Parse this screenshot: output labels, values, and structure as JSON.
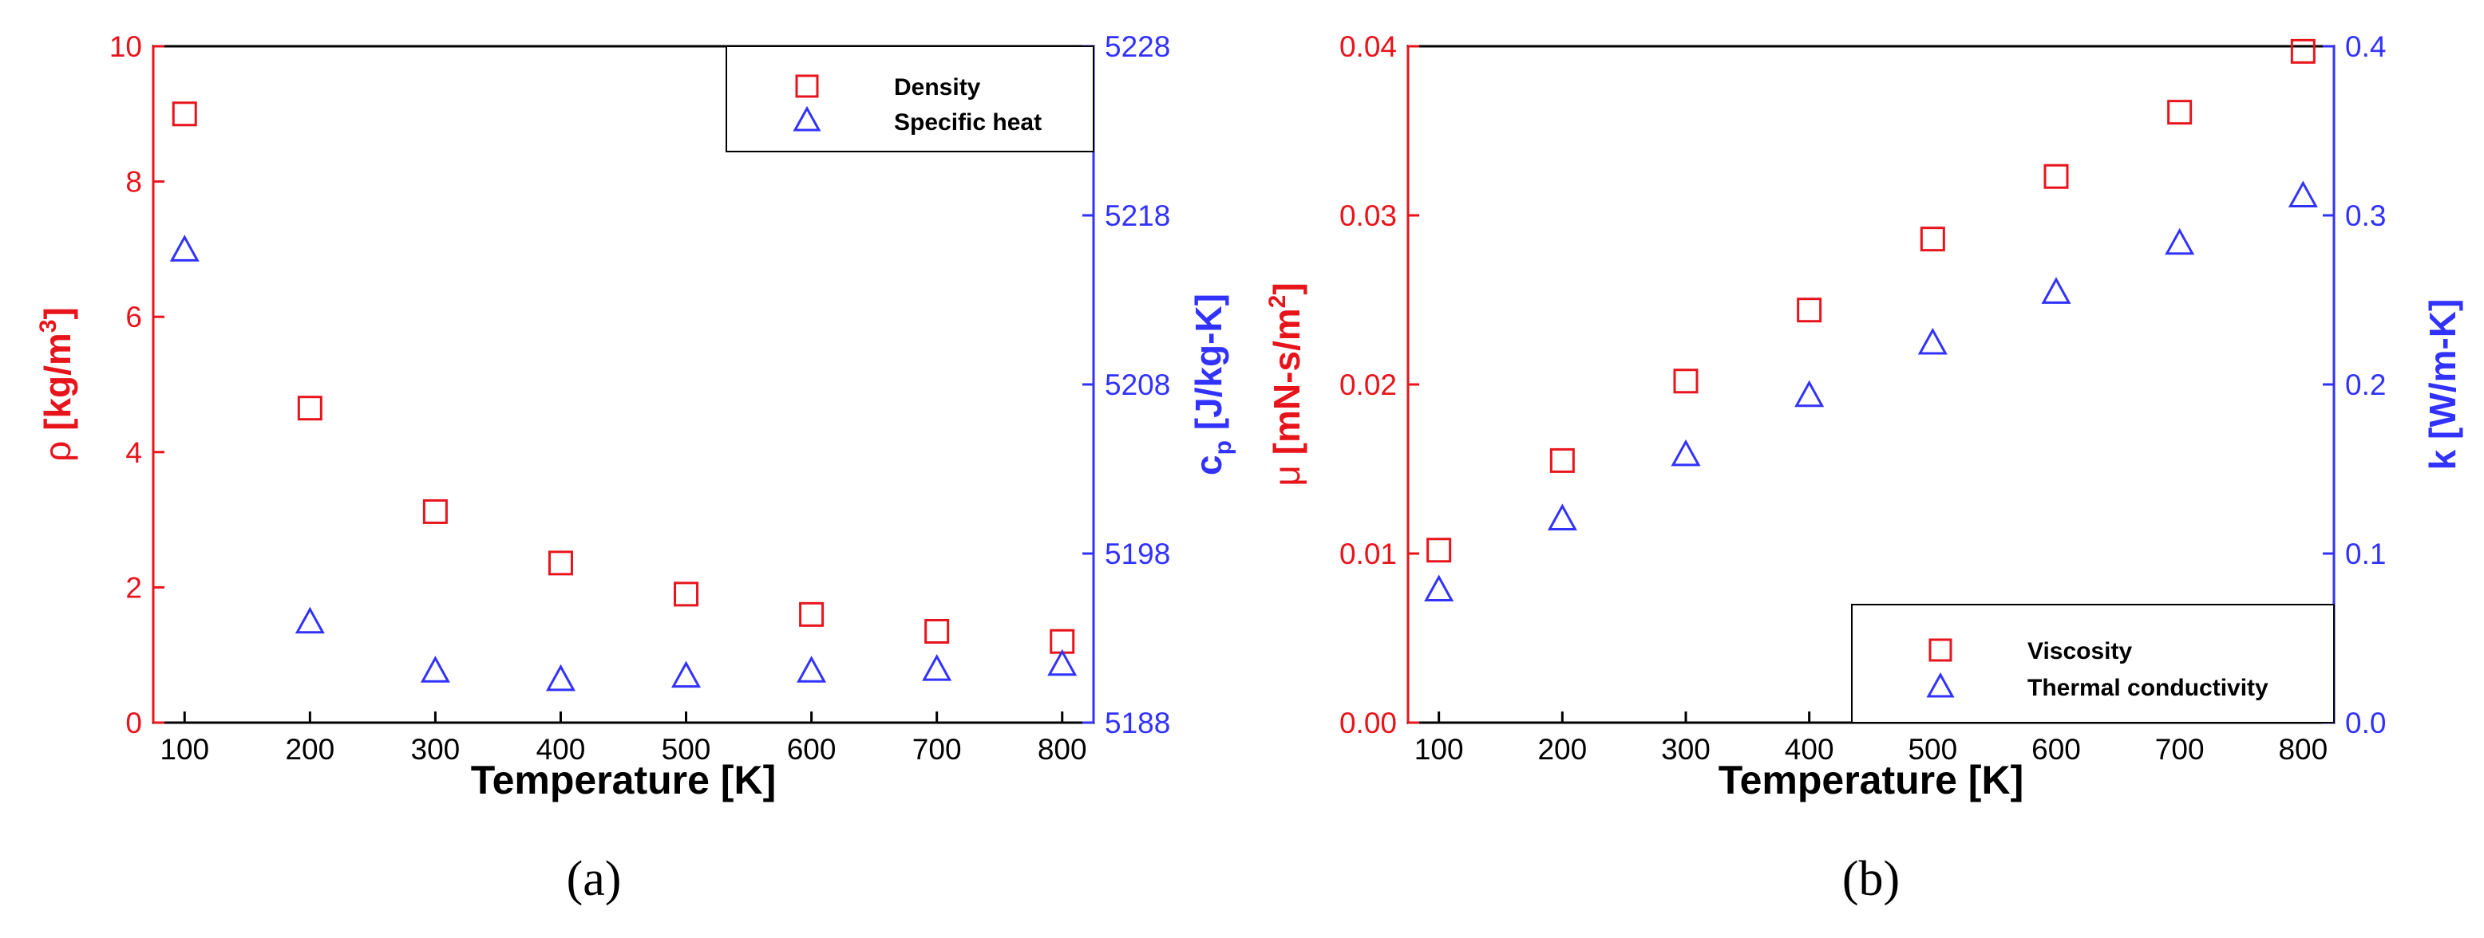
{
  "colors": {
    "red": "#e8141c",
    "blue": "#3232ff",
    "axis": "#000000"
  },
  "chart_data": [
    {
      "type": "scatter",
      "panel_label": "(a)",
      "xlabel": "Temperature [K]",
      "x_ticks": [
        "100",
        "200",
        "300",
        "400",
        "500",
        "600",
        "700",
        "800"
      ],
      "xlim": [
        75,
        825
      ],
      "ylabel_left": {
        "symbol": "ρ",
        "text": " [kg/m",
        "sup": "3",
        "tail": "]"
      },
      "ylim_left": [
        0,
        10
      ],
      "y_ticks_left": [
        "0",
        "2",
        "4",
        "6",
        "8",
        "10"
      ],
      "ylabel_right": {
        "symbol": "c",
        "sub": "p",
        "text": " [J/kg-K]"
      },
      "ylim_right": [
        5188,
        5228
      ],
      "y_ticks_right": [
        "5188",
        "5198",
        "5208",
        "5218",
        "5228"
      ],
      "legend_position": "top-right",
      "series": [
        {
          "name": "Density",
          "axis": "left",
          "marker": "square",
          "color": "#e8141c",
          "x": [
            100,
            200,
            300,
            400,
            500,
            600,
            700,
            800
          ],
          "y": [
            9.0,
            4.65,
            3.12,
            2.36,
            1.9,
            1.6,
            1.35,
            1.2
          ]
        },
        {
          "name": "Specific heat",
          "axis": "right",
          "marker": "triangle",
          "color": "#3232ff",
          "x": [
            100,
            200,
            300,
            400,
            500,
            600,
            700,
            800
          ],
          "y": [
            5216.0,
            5194.0,
            5191.1,
            5190.6,
            5190.8,
            5191.1,
            5191.2,
            5191.5
          ]
        }
      ]
    },
    {
      "type": "scatter",
      "panel_label": "(b)",
      "xlabel": "Temperature [K]",
      "x_ticks": [
        "100",
        "200",
        "300",
        "400",
        "500",
        "600",
        "700",
        "800"
      ],
      "xlim": [
        75,
        825
      ],
      "ylabel_left": {
        "symbol": "μ",
        "text": " [mN-s/m",
        "sup": "2",
        "tail": "]"
      },
      "ylim_left": [
        0,
        0.04
      ],
      "y_ticks_left": [
        "0.00",
        "0.01",
        "0.02",
        "0.03",
        "0.04"
      ],
      "ylabel_right": {
        "symbol": "",
        "text": "k [W/m-K]"
      },
      "ylim_right": [
        0,
        0.4
      ],
      "y_ticks_right": [
        "0.0",
        "0.1",
        "0.2",
        "0.3",
        "0.4"
      ],
      "legend_position": "bottom-right",
      "series": [
        {
          "name": "Viscosity",
          "axis": "left",
          "marker": "square",
          "color": "#e8141c",
          "x": [
            100,
            200,
            300,
            400,
            500,
            600,
            700,
            800
          ],
          "y": [
            0.0102,
            0.0155,
            0.0202,
            0.0244,
            0.0286,
            0.0323,
            0.0361,
            0.0397
          ]
        },
        {
          "name": "Thermal conductivity",
          "axis": "right",
          "marker": "triangle",
          "color": "#3232ff",
          "x": [
            100,
            200,
            300,
            400,
            500,
            600,
            700,
            800
          ],
          "y": [
            0.079,
            0.121,
            0.159,
            0.194,
            0.225,
            0.255,
            0.284,
            0.312
          ]
        }
      ]
    }
  ]
}
